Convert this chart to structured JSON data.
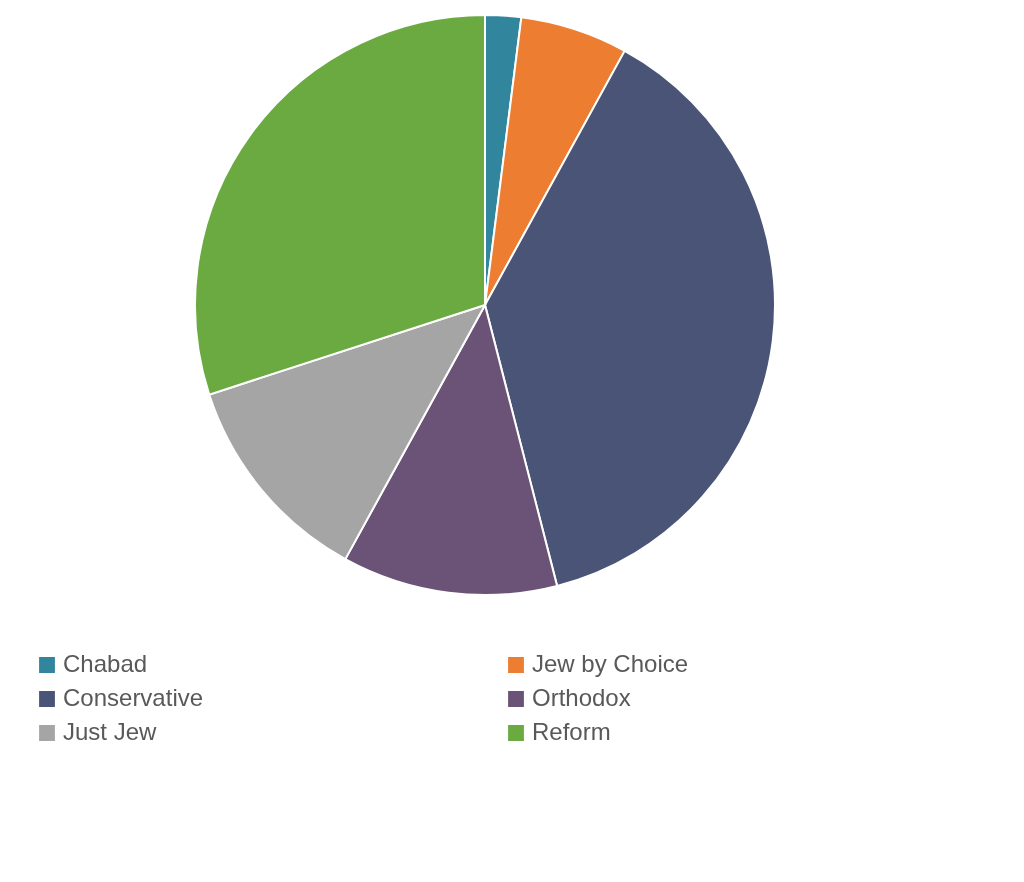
{
  "chart_data": {
    "type": "pie",
    "categories": [
      "Chabad",
      "Jew by Choice",
      "Conservative",
      "Orthodox",
      "Just Jew",
      "Reform"
    ],
    "values": [
      2,
      6,
      38,
      12,
      12,
      30
    ],
    "colors": [
      "#31859c",
      "#ed7d31",
      "#4a5477",
      "#6b5378",
      "#a5a5a5",
      "#6aaa40"
    ],
    "legend": "bottom"
  }
}
